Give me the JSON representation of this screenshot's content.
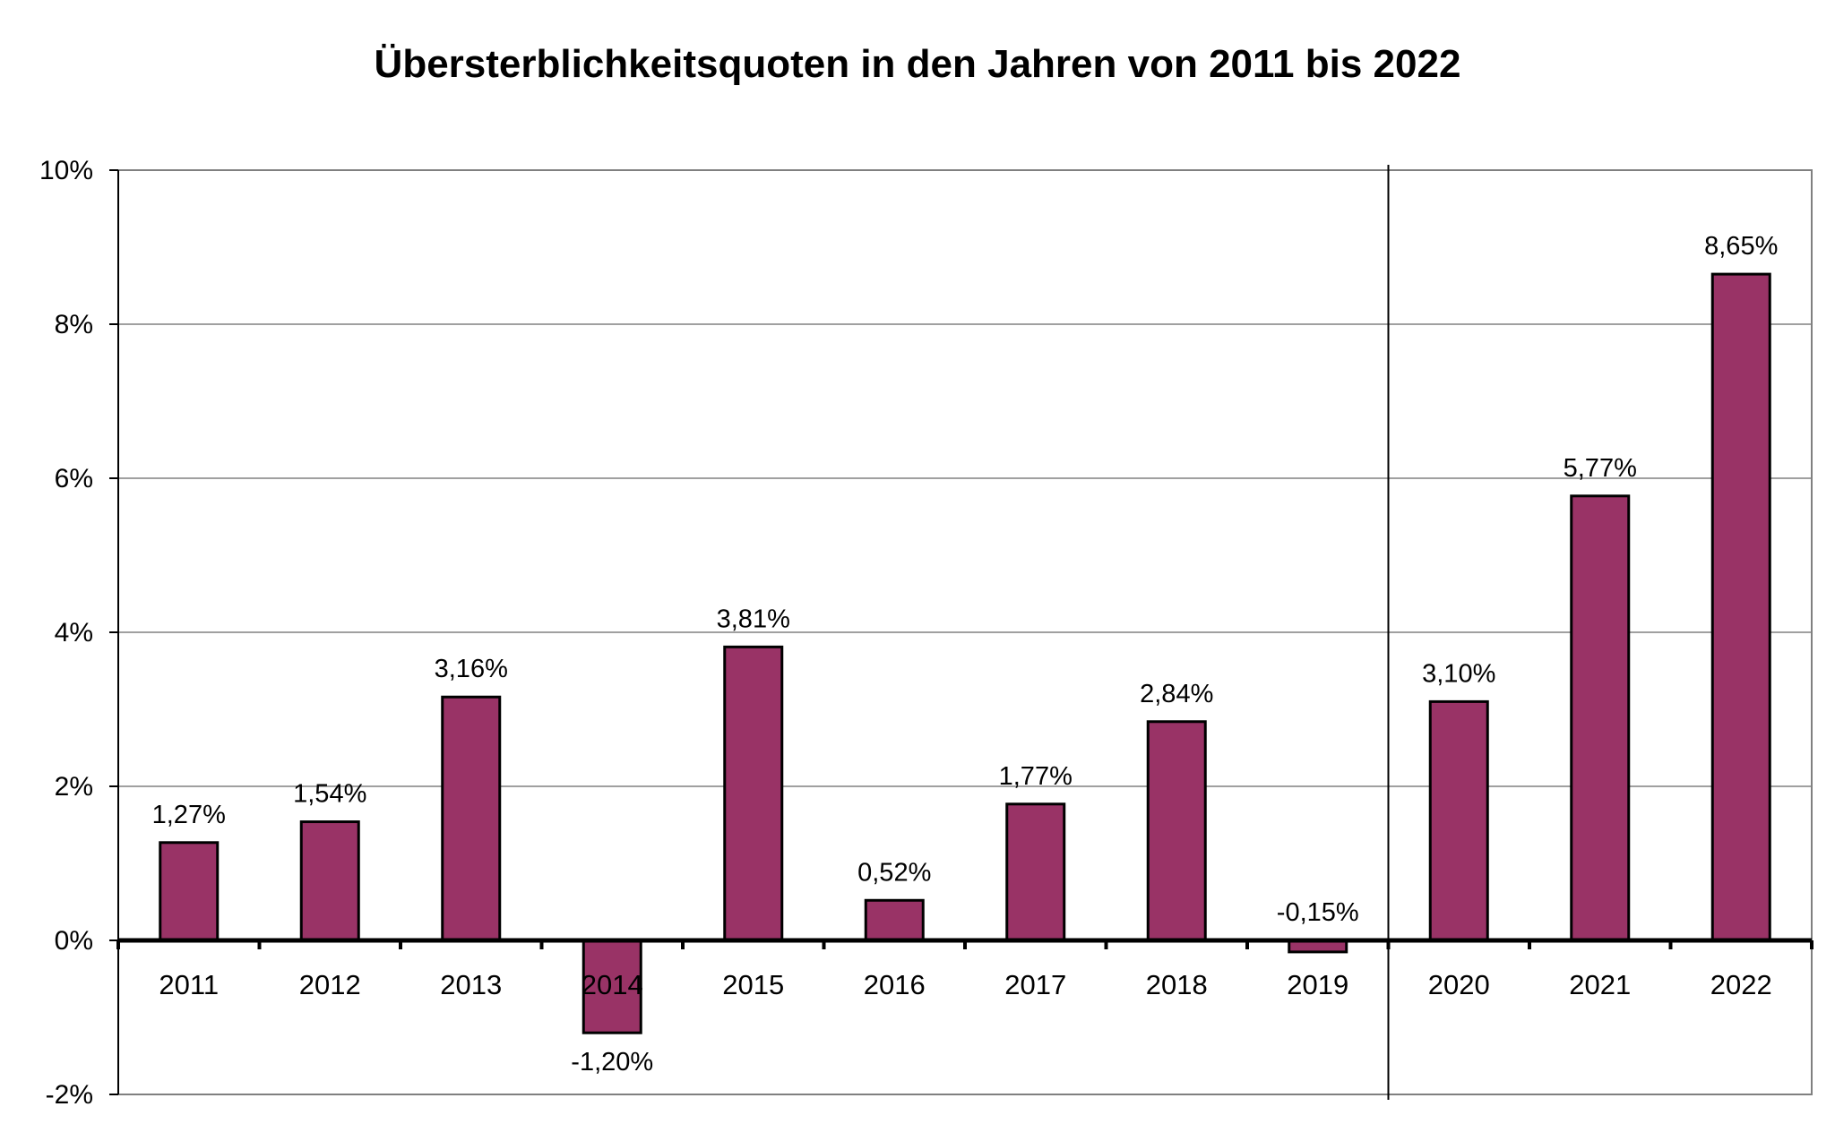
{
  "chart_data": {
    "type": "bar",
    "title": "Übersterblichkeitsquoten in den Jahren von 2011 bis 2022",
    "xlabel": "",
    "ylabel": "",
    "categories": [
      "2011",
      "2012",
      "2013",
      "2014",
      "2015",
      "2016",
      "2017",
      "2018",
      "2019",
      "2020",
      "2021",
      "2022"
    ],
    "values": [
      1.27,
      1.54,
      3.16,
      -1.2,
      3.81,
      0.52,
      1.77,
      2.84,
      -0.15,
      3.1,
      5.77,
      8.65
    ],
    "data_labels": [
      "1,27%",
      "1,54%",
      "3,16%",
      "-1,20%",
      "3,81%",
      "0,52%",
      "1,77%",
      "2,84%",
      "-0,15%",
      "3,10%",
      "5,77%",
      "8,65%"
    ],
    "ylim": [
      -2,
      10
    ],
    "yticks": [
      10,
      8,
      6,
      4,
      2,
      0,
      -2
    ],
    "ytick_labels": [
      "10%",
      "8%",
      "6%",
      "4%",
      "2%",
      "0%",
      "-2%"
    ],
    "grid": true,
    "separator_after_category": "2019",
    "colors": {
      "bar_fill": "#993366",
      "bar_stroke": "#000000",
      "grid": "#808080",
      "axis": "#000000",
      "frame": "#808080"
    }
  }
}
